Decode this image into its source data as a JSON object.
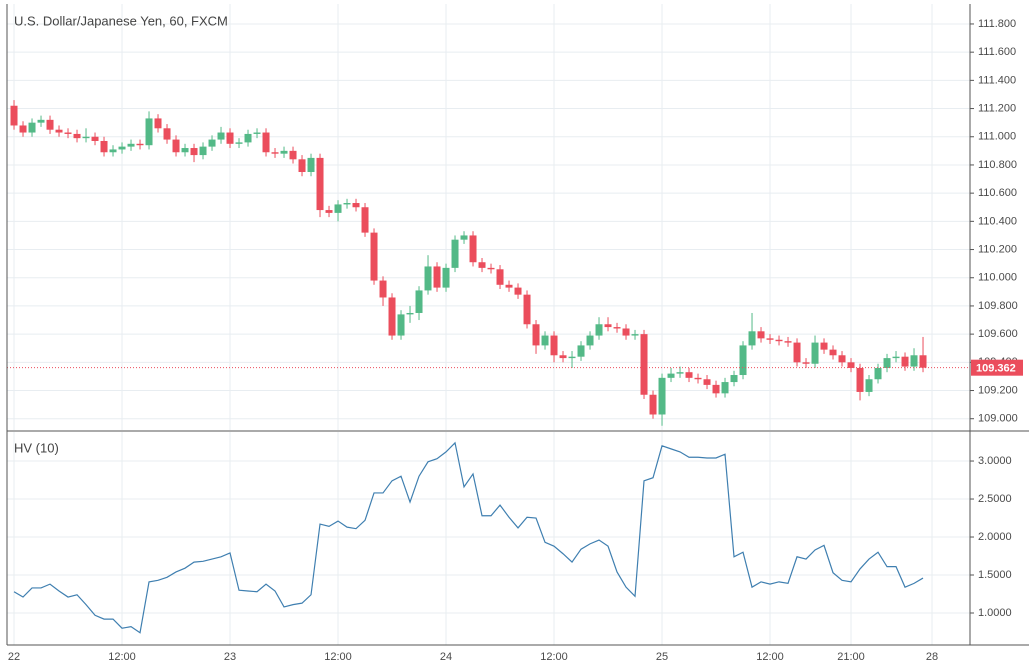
{
  "chart_data": [
    {
      "type": "candlestick",
      "title": "U.S. Dollar/Japanese Yen, 60, FXCM",
      "x": [
        0,
        1,
        2,
        3,
        4,
        5,
        6,
        7,
        8,
        9,
        10,
        11,
        12,
        13,
        14,
        15,
        16,
        17,
        18,
        19,
        20,
        21,
        22,
        23,
        24,
        25,
        26,
        27,
        28,
        29,
        30,
        31,
        32,
        33,
        34,
        35,
        36,
        37,
        38,
        39,
        40,
        41,
        42,
        43,
        44,
        45,
        46,
        47,
        48,
        49,
        50,
        51,
        52,
        53,
        54,
        55,
        56,
        57,
        58,
        59,
        60,
        61,
        62,
        63,
        64,
        65,
        66,
        67,
        68,
        69,
        70,
        71,
        72,
        73,
        74,
        75,
        76,
        77,
        78,
        79,
        80,
        81,
        82,
        83,
        84,
        85,
        86,
        87,
        88,
        89,
        90,
        91,
        92,
        93,
        94,
        95,
        96,
        97,
        98,
        99,
        100,
        101
      ],
      "open": [
        111.22,
        111.08,
        111.03,
        111.1,
        111.12,
        111.05,
        111.03,
        111.02,
        110.99,
        111.0,
        110.97,
        110.89,
        110.91,
        110.93,
        110.95,
        110.94,
        111.13,
        111.06,
        110.98,
        110.89,
        110.92,
        110.87,
        110.93,
        110.98,
        111.03,
        110.95,
        110.96,
        111.02,
        111.03,
        110.89,
        110.88,
        110.9,
        110.84,
        110.75,
        110.85,
        110.48,
        110.46,
        110.52,
        110.53,
        110.5,
        110.32,
        109.98,
        109.86,
        109.59,
        109.74,
        109.75,
        109.91,
        110.08,
        109.93,
        110.07,
        110.27,
        110.3,
        110.11,
        110.07,
        110.06,
        109.95,
        109.93,
        109.88,
        109.67,
        109.52,
        109.59,
        109.45,
        109.43,
        109.44,
        109.52,
        109.59,
        109.67,
        109.65,
        109.64,
        109.59,
        109.6,
        109.17,
        109.03,
        109.29,
        109.32,
        109.33,
        109.29,
        109.28,
        109.24,
        109.18,
        109.26,
        109.31,
        109.52,
        109.62,
        109.57,
        109.56,
        109.55,
        109.54,
        109.4,
        109.39,
        109.54,
        109.49,
        109.45,
        109.4,
        109.36,
        109.19,
        109.28,
        109.36,
        109.43,
        109.44,
        109.37,
        109.45
      ],
      "high": [
        111.26,
        111.11,
        111.13,
        111.15,
        111.15,
        111.08,
        111.06,
        111.05,
        111.06,
        111.03,
        111.0,
        110.94,
        110.96,
        110.98,
        110.98,
        111.18,
        111.16,
        111.09,
        111.01,
        110.95,
        110.95,
        110.96,
        111.01,
        111.07,
        111.06,
        110.99,
        111.05,
        111.06,
        111.06,
        110.92,
        110.93,
        110.93,
        110.87,
        110.88,
        110.88,
        110.51,
        110.55,
        110.56,
        110.56,
        110.53,
        110.35,
        110.01,
        109.89,
        109.77,
        109.8,
        109.94,
        110.16,
        110.11,
        110.1,
        110.3,
        110.33,
        110.33,
        110.14,
        110.1,
        110.09,
        109.98,
        109.96,
        109.91,
        109.7,
        109.62,
        109.62,
        109.48,
        109.48,
        109.55,
        109.62,
        109.72,
        109.72,
        109.68,
        109.67,
        109.63,
        109.63,
        109.2,
        109.32,
        109.36,
        109.37,
        109.36,
        109.32,
        109.31,
        109.27,
        109.29,
        109.34,
        109.55,
        109.75,
        109.65,
        109.6,
        109.59,
        109.58,
        109.57,
        109.43,
        109.59,
        109.57,
        109.52,
        109.48,
        109.43,
        109.39,
        109.31,
        109.39,
        109.46,
        109.48,
        109.47,
        109.5,
        109.58
      ],
      "low": [
        111.05,
        111.0,
        111.0,
        111.07,
        111.02,
        111.0,
        110.99,
        110.96,
        110.96,
        110.94,
        110.86,
        110.86,
        110.88,
        110.9,
        110.91,
        110.91,
        111.03,
        110.95,
        110.86,
        110.86,
        110.82,
        110.84,
        110.9,
        110.95,
        110.92,
        110.92,
        110.93,
        110.99,
        110.86,
        110.85,
        110.85,
        110.81,
        110.72,
        110.72,
        110.43,
        110.43,
        110.4,
        110.49,
        110.47,
        110.29,
        109.95,
        109.8,
        109.56,
        109.56,
        109.68,
        109.7,
        109.88,
        109.9,
        109.9,
        110.04,
        110.24,
        110.08,
        110.04,
        110.03,
        109.92,
        109.9,
        109.85,
        109.64,
        109.46,
        109.49,
        109.4,
        109.4,
        109.36,
        109.41,
        109.49,
        109.56,
        109.62,
        109.61,
        109.56,
        109.56,
        109.14,
        109.0,
        108.95,
        109.26,
        109.29,
        109.26,
        109.25,
        109.21,
        109.15,
        109.15,
        109.23,
        109.28,
        109.49,
        109.54,
        109.53,
        109.52,
        109.51,
        109.37,
        109.36,
        109.36,
        109.46,
        109.42,
        109.37,
        109.33,
        109.13,
        109.16,
        109.25,
        109.33,
        109.4,
        109.34,
        109.34,
        109.33
      ],
      "close": [
        111.08,
        111.03,
        111.1,
        111.12,
        111.05,
        111.03,
        111.02,
        110.99,
        111.0,
        110.97,
        110.89,
        110.91,
        110.93,
        110.95,
        110.94,
        111.13,
        111.06,
        110.98,
        110.89,
        110.92,
        110.87,
        110.93,
        110.98,
        111.03,
        110.95,
        110.96,
        111.02,
        111.03,
        110.89,
        110.88,
        110.9,
        110.84,
        110.75,
        110.85,
        110.48,
        110.46,
        110.52,
        110.53,
        110.5,
        110.32,
        109.98,
        109.86,
        109.59,
        109.74,
        109.75,
        109.91,
        110.08,
        109.93,
        110.07,
        110.27,
        110.3,
        110.11,
        110.07,
        110.06,
        109.95,
        109.93,
        109.88,
        109.67,
        109.52,
        109.59,
        109.45,
        109.43,
        109.44,
        109.52,
        109.59,
        109.67,
        109.65,
        109.64,
        109.59,
        109.6,
        109.17,
        109.03,
        109.29,
        109.32,
        109.33,
        109.29,
        109.28,
        109.24,
        109.18,
        109.26,
        109.31,
        109.52,
        109.62,
        109.57,
        109.56,
        109.55,
        109.54,
        109.4,
        109.39,
        109.54,
        109.49,
        109.45,
        109.4,
        109.36,
        109.19,
        109.28,
        109.36,
        109.43,
        109.44,
        109.37,
        109.45,
        109.362
      ],
      "up_color": "#53b987",
      "down_color": "#eb4d5c",
      "last": 109.362,
      "xlim": [
        -0.78,
        106.22
      ],
      "ylim": [
        108.92,
        111.97
      ],
      "yticks": [
        {
          "value": 109.0,
          "label": "109.000"
        },
        {
          "value": 109.2,
          "label": "109.200"
        },
        {
          "value": 109.4,
          "label": "109.400"
        },
        {
          "value": 109.6,
          "label": "109.600"
        },
        {
          "value": 109.8,
          "label": "109.800"
        },
        {
          "value": 110.0,
          "label": "110.000"
        },
        {
          "value": 110.2,
          "label": "110.200"
        },
        {
          "value": 110.4,
          "label": "110.400"
        },
        {
          "value": 110.6,
          "label": "110.600"
        },
        {
          "value": 110.8,
          "label": "110.800"
        },
        {
          "value": 111.0,
          "label": "111.000"
        },
        {
          "value": 111.2,
          "label": "111.200"
        },
        {
          "value": 111.4,
          "label": "111.400"
        },
        {
          "value": 111.6,
          "label": "111.600"
        },
        {
          "value": 111.8,
          "label": "111.800"
        }
      ],
      "grid": true
    },
    {
      "type": "line",
      "title": "HV (10)",
      "x": [
        0,
        1,
        2,
        3,
        4,
        5,
        6,
        7,
        8,
        9,
        10,
        11,
        12,
        13,
        14,
        15,
        16,
        17,
        18,
        19,
        20,
        21,
        22,
        23,
        24,
        25,
        26,
        27,
        28,
        29,
        30,
        31,
        32,
        33,
        34,
        35,
        36,
        37,
        38,
        39,
        40,
        41,
        42,
        43,
        44,
        45,
        46,
        47,
        48,
        49,
        50,
        51,
        52,
        53,
        54,
        55,
        56,
        57,
        58,
        59,
        60,
        61,
        62,
        63,
        64,
        65,
        66,
        67,
        68,
        69,
        70,
        71,
        72,
        73,
        74,
        75,
        76,
        77,
        78,
        79,
        80,
        81,
        82,
        83,
        84,
        85,
        86,
        87,
        88,
        89,
        90,
        91,
        92,
        93,
        94,
        95,
        96,
        97,
        98,
        99,
        100,
        101
      ],
      "values": [
        1.28,
        1.21,
        1.33,
        1.33,
        1.38,
        1.29,
        1.21,
        1.24,
        1.11,
        0.97,
        0.92,
        0.92,
        0.8,
        0.82,
        0.74,
        1.41,
        1.43,
        1.47,
        1.54,
        1.59,
        1.67,
        1.68,
        1.71,
        1.74,
        1.79,
        1.3,
        1.29,
        1.28,
        1.38,
        1.29,
        1.08,
        1.11,
        1.13,
        1.24,
        2.17,
        2.14,
        2.21,
        2.13,
        2.11,
        2.22,
        2.58,
        2.58,
        2.74,
        2.8,
        2.46,
        2.8,
        2.99,
        3.03,
        3.12,
        3.24,
        2.66,
        2.83,
        2.28,
        2.28,
        2.42,
        2.26,
        2.12,
        2.26,
        2.25,
        1.93,
        1.88,
        1.78,
        1.67,
        1.84,
        1.91,
        1.96,
        1.88,
        1.54,
        1.34,
        1.22,
        2.74,
        2.78,
        3.2,
        3.16,
        3.12,
        3.05,
        3.05,
        3.04,
        3.04,
        3.09,
        1.74,
        1.8,
        1.34,
        1.41,
        1.38,
        1.41,
        1.39,
        1.74,
        1.71,
        1.83,
        1.89,
        1.53,
        1.43,
        1.41,
        1.58,
        1.71,
        1.8,
        1.61,
        1.61,
        1.34,
        1.39,
        1.46
      ],
      "color": "#3f7fb0",
      "xlim": [
        -0.78,
        106.22
      ],
      "xticks": [
        {
          "value": 0,
          "label": "22"
        },
        {
          "value": 12,
          "label": "12:00"
        },
        {
          "value": 24,
          "label": "23"
        },
        {
          "value": 36,
          "label": "12:00"
        },
        {
          "value": 48,
          "label": "24"
        },
        {
          "value": 60,
          "label": "12:00"
        },
        {
          "value": 72,
          "label": "25"
        },
        {
          "value": 84,
          "label": "12:00"
        },
        {
          "value": 93,
          "label": "21:00"
        },
        {
          "value": 102,
          "label": "28"
        }
      ],
      "ylim": [
        0.579,
        3.382
      ],
      "yticks": [
        {
          "value": 1,
          "label": "1.0000"
        },
        {
          "value": 1.5,
          "label": "1.5000"
        },
        {
          "value": 2,
          "label": "2.0000"
        },
        {
          "value": 2.5,
          "label": "2.5000"
        },
        {
          "value": 3,
          "label": "3.0000"
        }
      ],
      "grid": true
    }
  ]
}
